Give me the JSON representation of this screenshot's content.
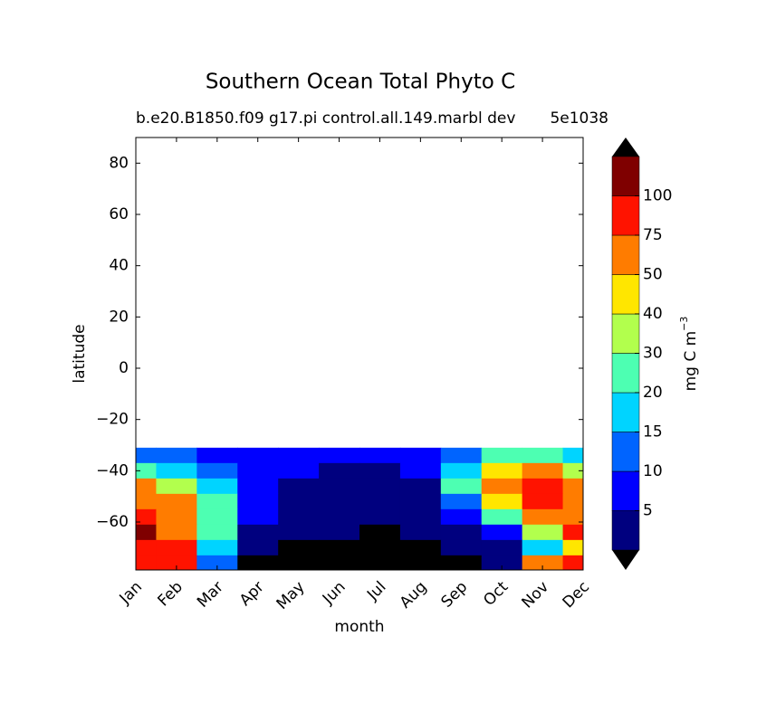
{
  "chart_data": {
    "type": "contour",
    "title": "Southern Ocean Total Phyto C",
    "subtitle_left": "b.e20.B1850.f09 g17.pi control.all.149.marbl dev",
    "subtitle_right": "5e1038",
    "x_label": "month",
    "y_label": "latitude",
    "categories": [
      "Jan",
      "Feb",
      "Mar",
      "Apr",
      "May",
      "Jun",
      "Jul",
      "Aug",
      "Sep",
      "Oct",
      "Nov",
      "Dec"
    ],
    "y": [
      -34,
      -40,
      -46,
      -52,
      -58,
      -64,
      -70,
      -76
    ],
    "z": [
      [
        12,
        10,
        8,
        7,
        6,
        6,
        5,
        5,
        12,
        20,
        20,
        15
      ],
      [
        20,
        15,
        10,
        6,
        5,
        4,
        4,
        5,
        15,
        40,
        50,
        30
      ],
      [
        55,
        35,
        15,
        8,
        4,
        3,
        3,
        4,
        20,
        60,
        85,
        60
      ],
      [
        60,
        50,
        20,
        7,
        4,
        3,
        3,
        3,
        10,
        40,
        80,
        70
      ],
      [
        80,
        60,
        20,
        6,
        4,
        3,
        3,
        3,
        6,
        20,
        50,
        60
      ],
      [
        110,
        60,
        20,
        4,
        3,
        3,
        0.5,
        2,
        4,
        8,
        30,
        85
      ],
      [
        80,
        80,
        15,
        2,
        0.5,
        0.5,
        0.5,
        0.5,
        2,
        4,
        15,
        40
      ],
      [
        90,
        75,
        10,
        0.5,
        0.5,
        0.5,
        0.5,
        0.5,
        0.5,
        2,
        60,
        75
      ]
    ],
    "ylim": [
      -78.7,
      90
    ],
    "yticks": [
      {
        "value": -60,
        "label": "−60"
      },
      {
        "value": -40,
        "label": "−40"
      },
      {
        "value": -20,
        "label": "−20"
      },
      0,
      20,
      40,
      60,
      80
    ],
    "levels": [
      1,
      5,
      10,
      15,
      20,
      30,
      40,
      50,
      75,
      100,
      125
    ],
    "colors": [
      "#00007f",
      "#0000ff",
      "#0064ff",
      "#00d4ff",
      "#4dffb2",
      "#b2ff4d",
      "#ffe600",
      "#ff7c00",
      "#ff1300",
      "#7f0000"
    ],
    "under_color": "#000000",
    "over_color": "#000000",
    "colorbar_label": "mg C m",
    "colorbar_label_sup": "−3"
  }
}
